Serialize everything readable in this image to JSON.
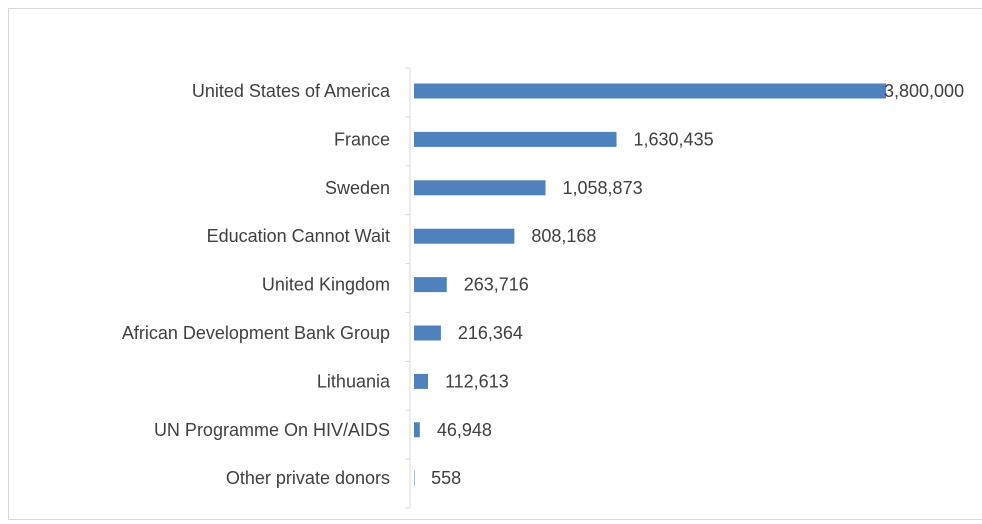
{
  "chart_data": {
    "type": "bar",
    "orientation": "horizontal",
    "categories": [
      "United States of America",
      "France",
      "Sweden",
      "Education Cannot Wait",
      "United Kingdom",
      "African Development Bank Group",
      "Lithuania",
      "UN Programme On HIV/AIDS",
      "Other private donors"
    ],
    "values": [
      3800000,
      1630435,
      1058873,
      808168,
      263716,
      216364,
      112613,
      46948,
      558
    ],
    "data_labels": [
      "3,800,000",
      "1,630,435",
      "1,058,873",
      "808,168",
      "263,716",
      "216,364",
      "112,613",
      "46,948",
      "558"
    ],
    "xlim": [
      0,
      3800000
    ],
    "grid": false,
    "legend": "none",
    "colors": {
      "bar": "#4f81bd",
      "text": "#404040",
      "axis": "#d9d9d9",
      "frame": "#d9d9d9"
    }
  }
}
